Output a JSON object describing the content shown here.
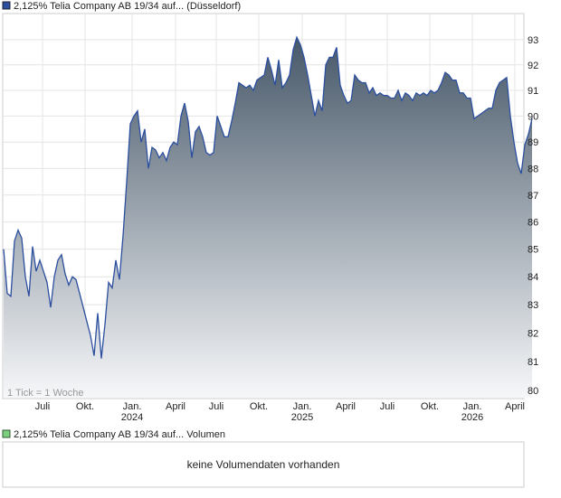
{
  "chart_data": {
    "type": "area",
    "legend": "2,125% Telia Company AB 19/34 auf... (Düsseldorf)",
    "annotation": "1 Tick = 1 Woche",
    "volume_legend": "2,125% Telia Company AB 19/34 auf... Volumen",
    "volume_note": "keine Volumendaten vorhanden",
    "color": "#2b4f9e",
    "log": true,
    "grid": true,
    "xlim": [
      0,
      143
    ],
    "ylim": [
      79.75,
      94.05
    ],
    "yticks": [
      80,
      81,
      82,
      83,
      84,
      85,
      86,
      87,
      88,
      89,
      90,
      91,
      92,
      93
    ],
    "xticks": [
      {
        "value": 10.75,
        "label": "Juli"
      },
      {
        "value": 22.5,
        "label": "Okt."
      },
      {
        "value": 35.5,
        "label": "Jan. 2024"
      },
      {
        "value": 47.5,
        "label": "April"
      },
      {
        "value": 58.75,
        "label": "Juli"
      },
      {
        "value": 70.5,
        "label": "Okt."
      },
      {
        "value": 82.5,
        "label": "Jan. 2025"
      },
      {
        "value": 94.5,
        "label": "April"
      },
      {
        "value": 106,
        "label": "Juli"
      },
      {
        "value": 117.75,
        "label": "Okt."
      },
      {
        "value": 129.5,
        "label": "Jan. 2026"
      },
      {
        "value": 141.25,
        "label": "April"
      }
    ],
    "values": [
      85,
      83.4,
      83.3,
      85.3,
      85.7,
      85.4,
      84.0,
      83.3,
      85.1,
      84.2,
      84.6,
      84.2,
      83.8,
      82.9,
      84.0,
      84.6,
      84.8,
      84.1,
      83.7,
      84.0,
      83.9,
      83.4,
      82.9,
      82.4,
      81.9,
      81.2,
      82.7,
      81.1,
      82.3,
      83.8,
      83.6,
      84.6,
      83.9,
      85.5,
      87.5,
      89.7,
      90.0,
      90.2,
      89.0,
      89.5,
      88.0,
      88.8,
      88.7,
      88.4,
      88.6,
      88.3,
      88.8,
      89.0,
      88.9,
      90.0,
      90.5,
      89.8,
      88.4,
      89.4,
      89.6,
      89.2,
      88.6,
      88.5,
      88.6,
      90.0,
      89.6,
      89.2,
      89.2,
      89.8,
      90.5,
      91.3,
      91.2,
      91.1,
      91.2,
      91.0,
      91.4,
      91.5,
      91.6,
      92.3,
      91.8,
      91.2,
      92.2,
      91.1,
      91.3,
      91.6,
      92.6,
      93.1,
      92.8,
      92.3,
      91.6,
      90.8,
      90.0,
      90.6,
      90.2,
      92.0,
      92.3,
      92.3,
      92.7,
      91.2,
      90.8,
      90.5,
      90.6,
      91.6,
      91.4,
      91.3,
      91.3,
      90.9,
      91.1,
      90.8,
      90.9,
      90.8,
      90.8,
      90.7,
      90.7,
      91.0,
      90.6,
      90.9,
      90.8,
      90.6,
      90.9,
      90.8,
      90.9,
      90.8,
      91.0,
      90.9,
      91.0,
      91.3,
      91.7,
      91.6,
      91.4,
      91.4,
      90.9,
      90.9,
      90.7,
      90.7,
      89.9,
      90.0,
      90.1,
      90.2,
      90.3,
      90.3,
      91.0,
      91.3,
      91.4,
      91.5,
      90.0,
      89.0,
      88.2,
      87.8,
      88.9,
      89.3,
      89.9
    ]
  }
}
